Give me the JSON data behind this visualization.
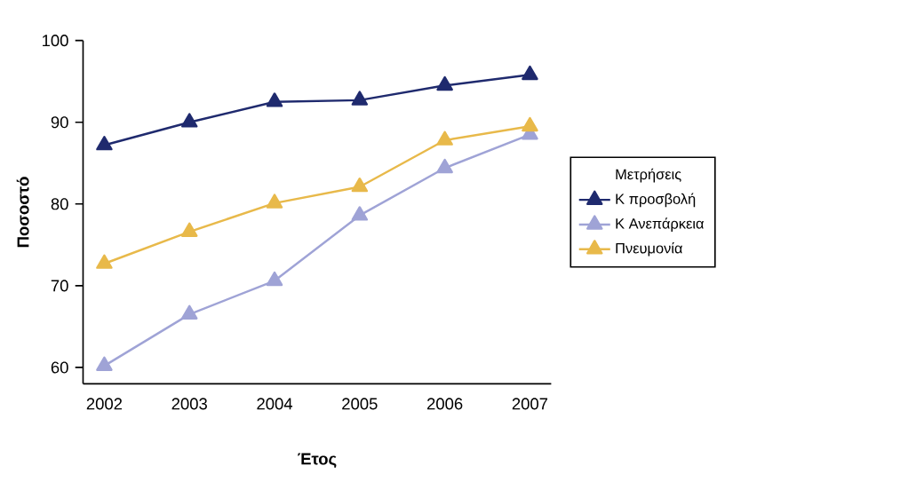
{
  "chart_data": {
    "type": "line",
    "xlabel": "Έτος",
    "ylabel": "Ποσοστό",
    "legend_title": "Μετρήσεις",
    "categories": [
      "2002",
      "2003",
      "2004",
      "2005",
      "2006",
      "2007"
    ],
    "series": [
      {
        "name": "Κ προσβολή",
        "color": "#1f2a6e",
        "values": [
          87.2,
          90.0,
          92.5,
          92.7,
          94.5,
          95.8
        ]
      },
      {
        "name": "Κ Ανεπάρκεια",
        "color": "#9fa3d6",
        "values": [
          60.2,
          66.5,
          70.6,
          78.6,
          84.4,
          88.5
        ]
      },
      {
        "name": "Πνευμονία",
        "color": "#e8b94a",
        "values": [
          72.7,
          76.6,
          80.1,
          82.1,
          87.8,
          89.5
        ]
      }
    ],
    "ylim": [
      58,
      100
    ],
    "yticks": [
      60,
      70,
      80,
      90,
      100
    ],
    "grid": false,
    "legend": "right",
    "marker": "triangle",
    "line_style": "solid"
  }
}
